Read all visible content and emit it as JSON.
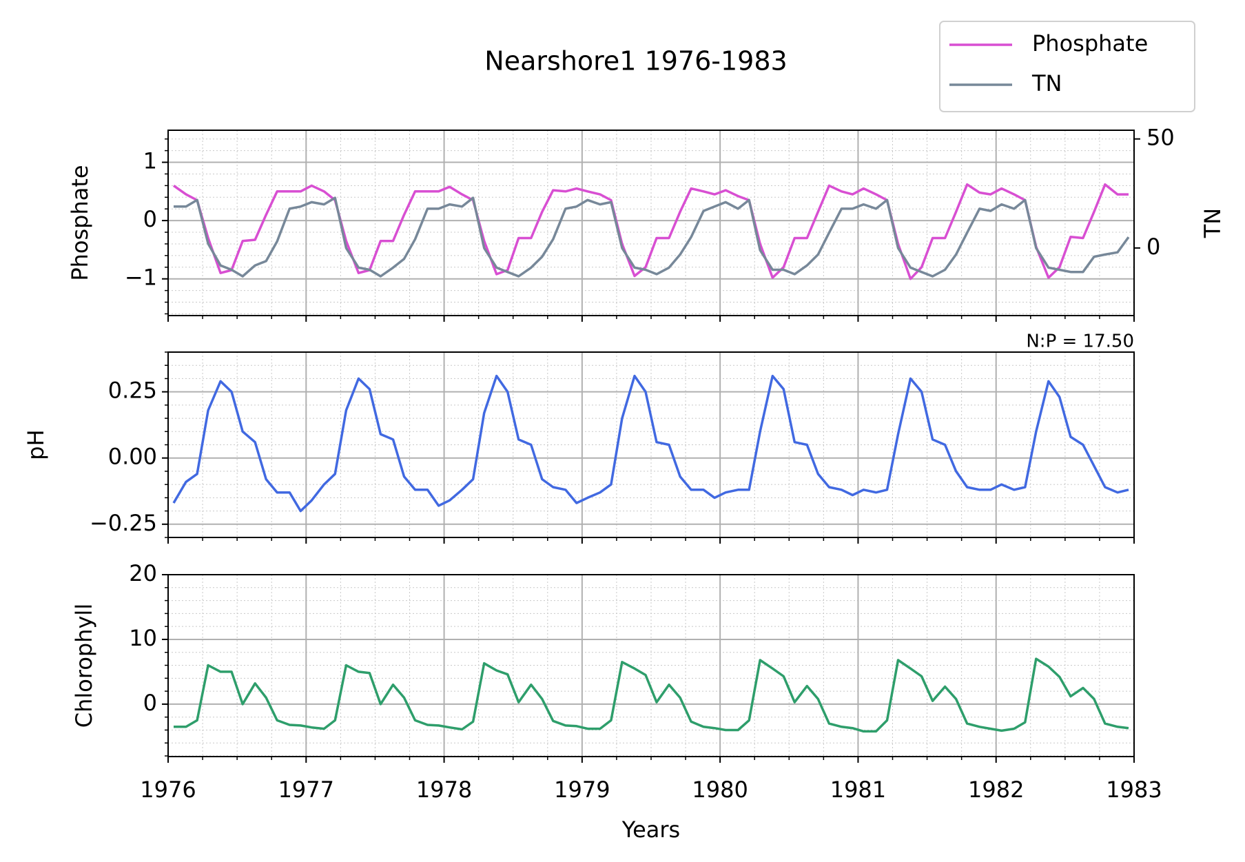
{
  "chart_data": [
    {
      "type": "line",
      "title": "Nearshore1 1976-1983",
      "ylabel": "Phosphate",
      "y2label": "TN",
      "legend": "upper right",
      "grid": true,
      "x": [
        1976.04,
        1976.13,
        1976.21,
        1976.29,
        1976.38,
        1976.46,
        1976.54,
        1976.63,
        1976.71,
        1976.79,
        1976.88,
        1976.96,
        1977.04,
        1977.13,
        1977.21,
        1977.29,
        1977.38,
        1977.46,
        1977.54,
        1977.63,
        1977.71,
        1977.79,
        1977.88,
        1977.96,
        1978.04,
        1978.13,
        1978.21,
        1978.29,
        1978.38,
        1978.46,
        1978.54,
        1978.63,
        1978.71,
        1978.79,
        1978.88,
        1978.96,
        1979.04,
        1979.13,
        1979.21,
        1979.29,
        1979.38,
        1979.46,
        1979.54,
        1979.63,
        1979.71,
        1979.79,
        1979.88,
        1979.96,
        1980.04,
        1980.13,
        1980.21,
        1980.29,
        1980.38,
        1980.46,
        1980.54,
        1980.63,
        1980.71,
        1980.79,
        1980.88,
        1980.96,
        1981.04,
        1981.13,
        1981.21,
        1981.29,
        1981.38,
        1981.46,
        1981.54,
        1981.63,
        1981.71,
        1981.79,
        1981.88,
        1981.96,
        1982.04,
        1982.13,
        1982.21,
        1982.29,
        1982.38,
        1982.46,
        1982.54,
        1982.63,
        1982.71,
        1982.79,
        1982.88,
        1982.96
      ],
      "xlim": [
        1976,
        1983
      ],
      "xticks": [
        1976,
        1977,
        1978,
        1979,
        1980,
        1981,
        1982,
        1983
      ],
      "ylim": [
        -1.63,
        1.55
      ],
      "yticks": [
        {
          "value": -1,
          "label": "−1"
        },
        0,
        1
      ],
      "y2lim": [
        -31,
        54
      ],
      "y2ticks": [
        0,
        50
      ],
      "series": [
        {
          "name": "Phosphate",
          "color": "#d84fd2",
          "values": [
            0.6,
            0.45,
            0.35,
            -0.3,
            -0.9,
            -0.85,
            -0.35,
            -0.33,
            0.1,
            0.5,
            0.5,
            0.5,
            0.6,
            0.5,
            0.35,
            -0.35,
            -0.9,
            -0.85,
            -0.35,
            -0.35,
            0.1,
            0.5,
            0.5,
            0.5,
            0.58,
            0.45,
            0.35,
            -0.35,
            -0.92,
            -0.85,
            -0.3,
            -0.3,
            0.15,
            0.52,
            0.5,
            0.55,
            0.5,
            0.45,
            0.35,
            -0.4,
            -0.95,
            -0.8,
            -0.3,
            -0.3,
            0.15,
            0.55,
            0.5,
            0.45,
            0.52,
            0.42,
            0.35,
            -0.4,
            -0.98,
            -0.8,
            -0.3,
            -0.3,
            0.15,
            0.6,
            0.5,
            0.45,
            0.55,
            0.45,
            0.35,
            -0.4,
            -1.0,
            -0.8,
            -0.3,
            -0.3,
            0.15,
            0.62,
            0.48,
            0.45,
            0.55,
            0.45,
            0.35,
            -0.45,
            -0.98,
            -0.8,
            -0.28,
            -0.3,
            0.15,
            0.62,
            0.45,
            0.45
          ]
        },
        {
          "name": "TN",
          "color": "#778899",
          "axis": "y2",
          "values": [
            19,
            19,
            22,
            2,
            -8,
            -10,
            -13,
            -8,
            -6,
            3,
            18,
            19,
            21,
            20,
            23,
            0,
            -9,
            -10,
            -13,
            -9,
            -5,
            4,
            18,
            18,
            20,
            19,
            23,
            0,
            -9,
            -11,
            -13,
            -9,
            -4,
            4,
            18,
            19,
            22,
            20,
            21,
            0,
            -9,
            -10,
            -12,
            -9,
            -3,
            5,
            17,
            19,
            21,
            18,
            22,
            -1,
            -10,
            -10,
            -12,
            -8,
            -3,
            7,
            18,
            18,
            20,
            18,
            22,
            0,
            -9,
            -11,
            -13,
            -10,
            -3,
            7,
            18,
            17,
            20,
            18,
            22,
            0,
            -9,
            -10,
            -11,
            -11,
            -4,
            -3,
            -2,
            5
          ]
        }
      ]
    },
    {
      "type": "line",
      "ylabel": "pH",
      "annotation": "N:P = 17.50",
      "grid": true,
      "color": "#4169e1",
      "x": [
        1976.04,
        1976.13,
        1976.21,
        1976.29,
        1976.38,
        1976.46,
        1976.54,
        1976.63,
        1976.71,
        1976.79,
        1976.88,
        1976.96,
        1977.04,
        1977.13,
        1977.21,
        1977.29,
        1977.38,
        1977.46,
        1977.54,
        1977.63,
        1977.71,
        1977.79,
        1977.88,
        1977.96,
        1978.04,
        1978.13,
        1978.21,
        1978.29,
        1978.38,
        1978.46,
        1978.54,
        1978.63,
        1978.71,
        1978.79,
        1978.88,
        1978.96,
        1979.04,
        1979.13,
        1979.21,
        1979.29,
        1979.38,
        1979.46,
        1979.54,
        1979.63,
        1979.71,
        1979.79,
        1979.88,
        1979.96,
        1980.04,
        1980.13,
        1980.21,
        1980.29,
        1980.38,
        1980.46,
        1980.54,
        1980.63,
        1980.71,
        1980.79,
        1980.88,
        1980.96,
        1981.04,
        1981.13,
        1981.21,
        1981.29,
        1981.38,
        1981.46,
        1981.54,
        1981.63,
        1981.71,
        1981.79,
        1981.88,
        1981.96,
        1982.04,
        1982.13,
        1982.21,
        1982.29,
        1982.38,
        1982.46,
        1982.54,
        1982.63,
        1982.71,
        1982.79,
        1982.88,
        1982.96
      ],
      "xlim": [
        1976,
        1983
      ],
      "xticks": [
        1976,
        1977,
        1978,
        1979,
        1980,
        1981,
        1982,
        1983
      ],
      "ylim": [
        -0.3,
        0.4
      ],
      "yticks": [
        {
          "value": -0.25,
          "label": "−0.25"
        },
        {
          "value": 0,
          "label": "0.00"
        },
        0.25
      ],
      "values": [
        -0.17,
        -0.09,
        -0.06,
        0.18,
        0.29,
        0.25,
        0.1,
        0.06,
        -0.08,
        -0.13,
        -0.13,
        -0.2,
        -0.16,
        -0.1,
        -0.06,
        0.18,
        0.3,
        0.26,
        0.09,
        0.07,
        -0.07,
        -0.12,
        -0.12,
        -0.18,
        -0.16,
        -0.12,
        -0.08,
        0.17,
        0.31,
        0.25,
        0.07,
        0.05,
        -0.08,
        -0.11,
        -0.12,
        -0.17,
        -0.15,
        -0.13,
        -0.1,
        0.15,
        0.31,
        0.25,
        0.06,
        0.05,
        -0.07,
        -0.12,
        -0.12,
        -0.15,
        -0.13,
        -0.12,
        -0.12,
        0.1,
        0.31,
        0.26,
        0.06,
        0.05,
        -0.06,
        -0.11,
        -0.12,
        -0.14,
        -0.12,
        -0.13,
        -0.12,
        0.09,
        0.3,
        0.25,
        0.07,
        0.05,
        -0.05,
        -0.11,
        -0.12,
        -0.12,
        -0.1,
        -0.12,
        -0.11,
        0.1,
        0.29,
        0.23,
        0.08,
        0.05,
        -0.03,
        -0.11,
        -0.13,
        -0.12
      ]
    },
    {
      "type": "line",
      "ylabel": "Chlorophyll",
      "xlabel": "Years",
      "grid": true,
      "color": "#2e9e6b",
      "x": [
        1976.04,
        1976.13,
        1976.21,
        1976.29,
        1976.38,
        1976.46,
        1976.54,
        1976.63,
        1976.71,
        1976.79,
        1976.88,
        1976.96,
        1977.04,
        1977.13,
        1977.21,
        1977.29,
        1977.38,
        1977.46,
        1977.54,
        1977.63,
        1977.71,
        1977.79,
        1977.88,
        1977.96,
        1978.04,
        1978.13,
        1978.21,
        1978.29,
        1978.38,
        1978.46,
        1978.54,
        1978.63,
        1978.71,
        1978.79,
        1978.88,
        1978.96,
        1979.04,
        1979.13,
        1979.21,
        1979.29,
        1979.38,
        1979.46,
        1979.54,
        1979.63,
        1979.71,
        1979.79,
        1979.88,
        1979.96,
        1980.04,
        1980.13,
        1980.21,
        1980.29,
        1980.38,
        1980.46,
        1980.54,
        1980.63,
        1980.71,
        1980.79,
        1980.88,
        1980.96,
        1981.04,
        1981.13,
        1981.21,
        1981.29,
        1981.38,
        1981.46,
        1981.54,
        1981.63,
        1981.71,
        1981.79,
        1981.88,
        1981.96,
        1982.04,
        1982.13,
        1982.21,
        1982.29,
        1982.38,
        1982.46,
        1982.54,
        1982.63,
        1982.71,
        1982.79,
        1982.88,
        1982.96
      ],
      "xlim": [
        1976,
        1983
      ],
      "xticks": [
        1976,
        1977,
        1978,
        1979,
        1980,
        1981,
        1982,
        1983
      ],
      "ylim": [
        -8.1,
        20
      ],
      "yticks": [
        0,
        10,
        20
      ],
      "values": [
        -3.5,
        -3.5,
        -2.5,
        6,
        5,
        5,
        0,
        3.2,
        1,
        -2.5,
        -3.2,
        -3.3,
        -3.6,
        -3.8,
        -2.5,
        6,
        5,
        4.8,
        0,
        3,
        1,
        -2.5,
        -3.2,
        -3.3,
        -3.6,
        -3.9,
        -2.7,
        6.3,
        5.2,
        4.6,
        0.3,
        3,
        0.8,
        -2.6,
        -3.3,
        -3.4,
        -3.8,
        -3.8,
        -2.5,
        6.5,
        5.5,
        4.5,
        0.3,
        3,
        1,
        -2.7,
        -3.5,
        -3.7,
        -4,
        -4,
        -2.5,
        6.8,
        5.5,
        4.3,
        0.3,
        2.8,
        0.8,
        -3,
        -3.5,
        -3.7,
        -4.2,
        -4.2,
        -2.5,
        6.8,
        5.5,
        4.3,
        0.5,
        2.7,
        0.8,
        -3,
        -3.5,
        -3.8,
        -4.1,
        -3.8,
        -2.8,
        7,
        5.8,
        4.2,
        1.2,
        2.5,
        0.8,
        -3,
        -3.5,
        -3.7
      ]
    }
  ]
}
